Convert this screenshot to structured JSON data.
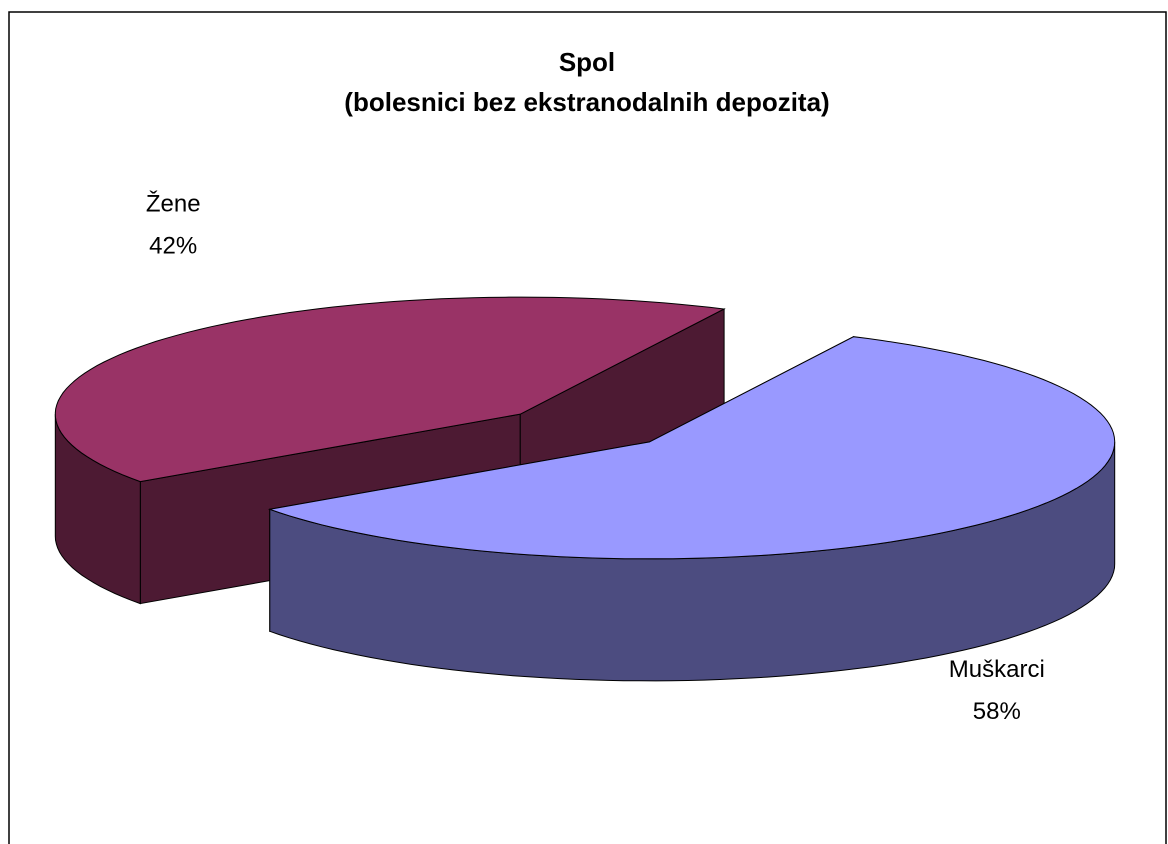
{
  "chart_data": {
    "type": "pie3d",
    "title": [
      "Spol",
      "(bolesnici bez ekstranodalnih depozita)"
    ],
    "categories": [
      "Muškarci",
      "Žene"
    ],
    "values": [
      58,
      42
    ],
    "value_labels": [
      "58%",
      "42%"
    ],
    "colors": [
      "#9999ff",
      "#993366"
    ],
    "side_colors": [
      "#4c4c80",
      "#4d1a33"
    ]
  }
}
